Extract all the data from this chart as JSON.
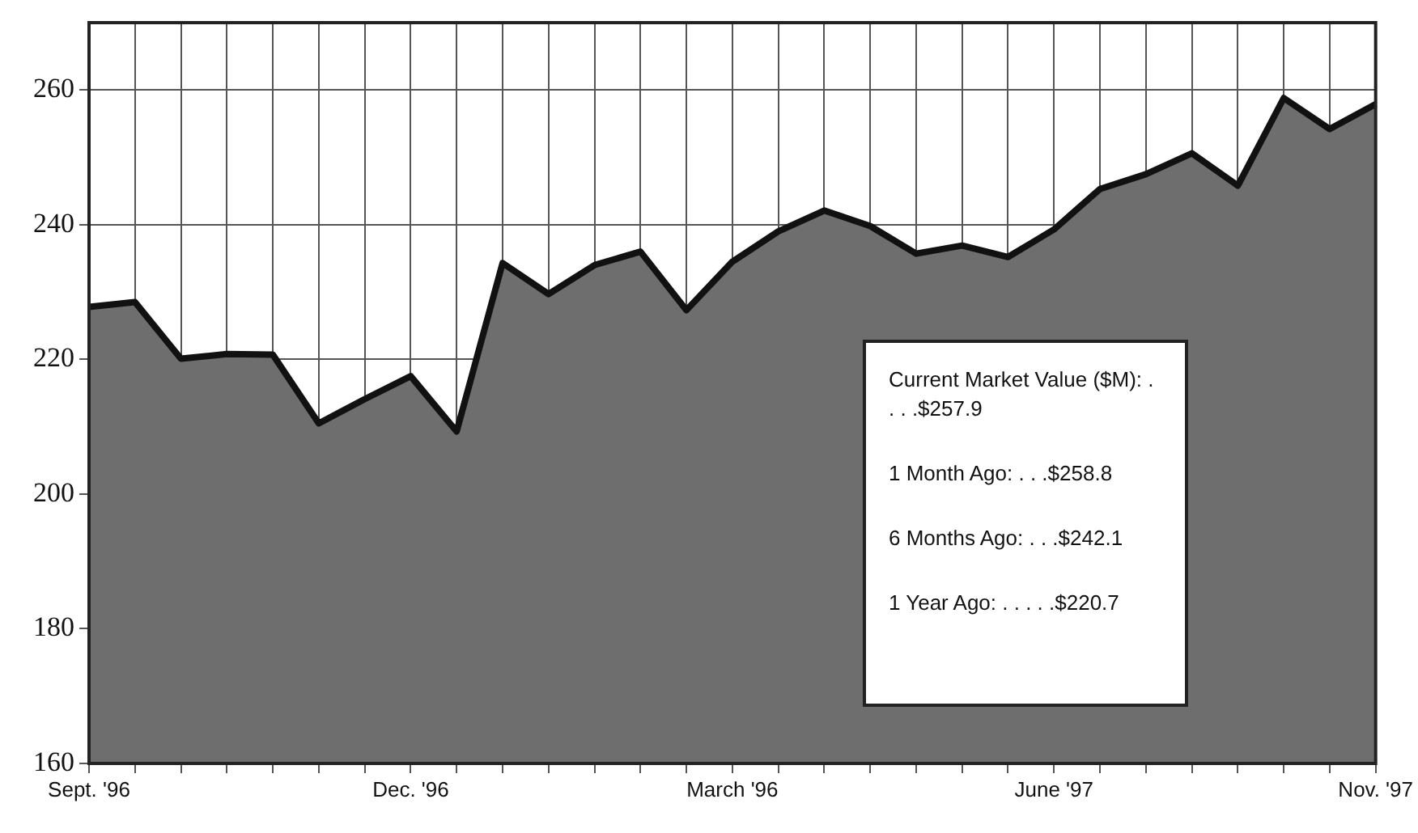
{
  "chart_data": {
    "type": "area",
    "categories": [
      "Sept. '96",
      null,
      null,
      null,
      null,
      null,
      null,
      "Dec. '96",
      null,
      null,
      null,
      null,
      null,
      null,
      "March '96",
      null,
      null,
      null,
      null,
      null,
      null,
      "June '97",
      null,
      null,
      null,
      null,
      null,
      null,
      "Nov. '97"
    ],
    "values": [
      227.8,
      228.5,
      220.1,
      220.8,
      220.7,
      210.5,
      214.1,
      217.5,
      209.3,
      234.3,
      229.7,
      234.0,
      236.0,
      227.3,
      234.5,
      239.0,
      242.1,
      239.8,
      235.7,
      236.9,
      235.2,
      239.3,
      245.3,
      247.5,
      250.6,
      245.8,
      258.8,
      254.2,
      257.9
    ],
    "color": "#6e6e6e",
    "ylim": [
      160,
      270
    ],
    "yticks": [
      160,
      180,
      200,
      220,
      240,
      260
    ],
    "grid": true,
    "annotations": [
      "Current Market Value ($M): . . . .$257.9",
      "1 Month Ago: . . .$258.8",
      "6 Months Ago: . . .$242.1",
      "1 Year Ago: . . . . .$220.7"
    ]
  }
}
